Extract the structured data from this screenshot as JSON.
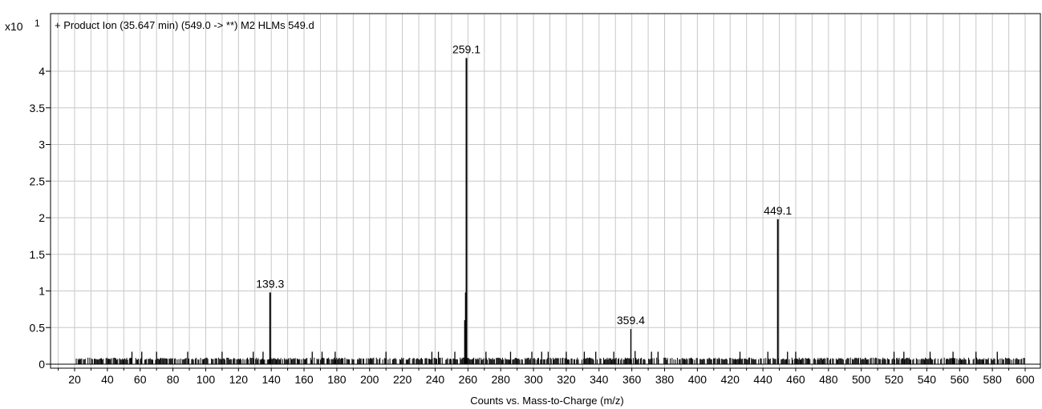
{
  "chart_data": {
    "type": "bar",
    "title": "+ Product Ion (35.647 min) (549.0 -> **) M2 HLMs 549.d",
    "y_multiplier_label": "x10",
    "y_multiplier_exponent": "1",
    "xlabel": "Counts vs. Mass-to-Charge (m/z)",
    "ylabel": "",
    "xlim": [
      13,
      603
    ],
    "ylim": [
      0,
      4.5
    ],
    "x_ticks": [
      "20",
      "40",
      "60",
      "80",
      "100",
      "120",
      "140",
      "160",
      "180",
      "200",
      "220",
      "240",
      "260",
      "280",
      "300",
      "320",
      "340",
      "360",
      "380",
      "400",
      "420",
      "440",
      "460",
      "480",
      "500",
      "520",
      "540",
      "560",
      "580",
      "600"
    ],
    "y_ticks": [
      "0",
      "0.5",
      "1",
      "1.5",
      "2",
      "2.5",
      "3",
      "3.5",
      "4"
    ],
    "grid": true,
    "colors": {
      "line": "#000000",
      "grid": "#c8c8c8",
      "frame": "#000000"
    },
    "peaks": [
      {
        "mz": 139.3,
        "value": 0.98,
        "label": "139.3"
      },
      {
        "mz": 258.2,
        "value": 0.6,
        "label": ""
      },
      {
        "mz": 258.7,
        "value": 0.98,
        "label": ""
      },
      {
        "mz": 259.1,
        "value": 4.18,
        "label": "259.1"
      },
      {
        "mz": 359.4,
        "value": 0.48,
        "label": "359.4"
      },
      {
        "mz": 362.0,
        "value": 0.18,
        "label": ""
      },
      {
        "mz": 449.1,
        "value": 1.98,
        "label": "449.1"
      },
      {
        "mz": 55.0,
        "value": 0.17,
        "label": ""
      },
      {
        "mz": 61.0,
        "value": 0.17,
        "label": ""
      },
      {
        "mz": 70.0,
        "value": 0.17,
        "label": ""
      },
      {
        "mz": 89.0,
        "value": 0.17,
        "label": ""
      },
      {
        "mz": 110.0,
        "value": 0.17,
        "label": ""
      },
      {
        "mz": 129.0,
        "value": 0.17,
        "label": ""
      },
      {
        "mz": 135.0,
        "value": 0.17,
        "label": ""
      },
      {
        "mz": 165.0,
        "value": 0.17,
        "label": ""
      },
      {
        "mz": 171.0,
        "value": 0.17,
        "label": ""
      },
      {
        "mz": 179.0,
        "value": 0.17,
        "label": ""
      },
      {
        "mz": 210.0,
        "value": 0.17,
        "label": ""
      },
      {
        "mz": 238.0,
        "value": 0.17,
        "label": ""
      },
      {
        "mz": 242.0,
        "value": 0.17,
        "label": ""
      },
      {
        "mz": 252.0,
        "value": 0.17,
        "label": ""
      },
      {
        "mz": 271.0,
        "value": 0.17,
        "label": ""
      },
      {
        "mz": 286.0,
        "value": 0.17,
        "label": ""
      },
      {
        "mz": 299.0,
        "value": 0.17,
        "label": ""
      },
      {
        "mz": 305.0,
        "value": 0.17,
        "label": ""
      },
      {
        "mz": 309.0,
        "value": 0.17,
        "label": ""
      },
      {
        "mz": 320.0,
        "value": 0.17,
        "label": ""
      },
      {
        "mz": 331.0,
        "value": 0.17,
        "label": ""
      },
      {
        "mz": 338.0,
        "value": 0.17,
        "label": ""
      },
      {
        "mz": 349.0,
        "value": 0.17,
        "label": ""
      },
      {
        "mz": 372.0,
        "value": 0.17,
        "label": ""
      },
      {
        "mz": 376.0,
        "value": 0.17,
        "label": ""
      },
      {
        "mz": 426.0,
        "value": 0.17,
        "label": ""
      },
      {
        "mz": 443.0,
        "value": 0.17,
        "label": ""
      },
      {
        "mz": 455.0,
        "value": 0.17,
        "label": ""
      },
      {
        "mz": 460.0,
        "value": 0.17,
        "label": ""
      },
      {
        "mz": 520.0,
        "value": 0.17,
        "label": ""
      },
      {
        "mz": 526.0,
        "value": 0.17,
        "label": ""
      },
      {
        "mz": 542.0,
        "value": 0.17,
        "label": ""
      },
      {
        "mz": 556.0,
        "value": 0.17,
        "label": ""
      },
      {
        "mz": 570.0,
        "value": 0.17,
        "label": ""
      },
      {
        "mz": 583.0,
        "value": 0.17,
        "label": ""
      }
    ]
  }
}
